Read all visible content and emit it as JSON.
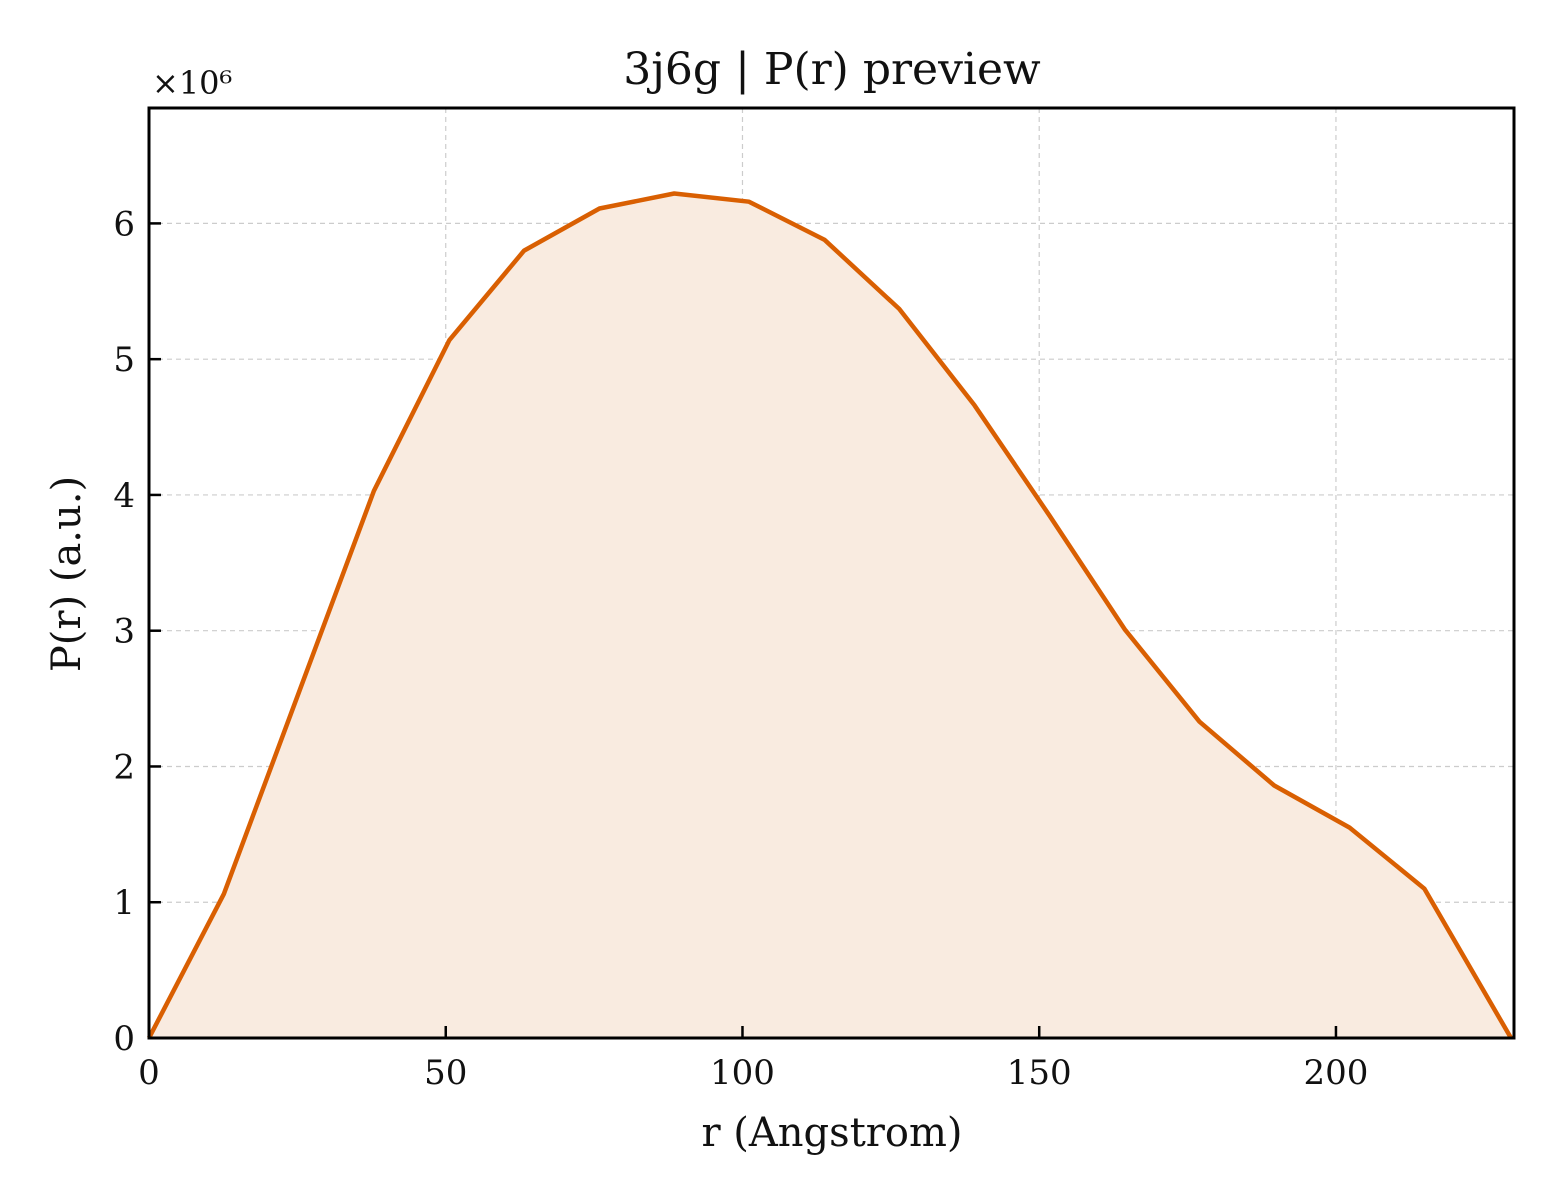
{
  "chart_data": {
    "type": "area",
    "title": "3j6g | P(r) preview",
    "xlabel": "r (Angstrom)",
    "ylabel": "P(r) (a.u.)",
    "y_offset_label": "×10⁶",
    "xlim": [
      0,
      230
    ],
    "ylim": [
      0,
      6.85
    ],
    "y_scale_factor": 1000000,
    "xticks": [
      0,
      50,
      100,
      150,
      200
    ],
    "yticks": [
      0,
      1,
      2,
      3,
      4,
      5,
      6
    ],
    "grid": true,
    "line_color": "#d95f02",
    "fill_color": "#f9ebe0",
    "series": [
      {
        "x": [
          0,
          12.6,
          25.3,
          37.9,
          50.6,
          63.2,
          75.9,
          88.5,
          101.1,
          113.8,
          126.4,
          139.1,
          151.7,
          164.4,
          177.0,
          189.6,
          202.3,
          214.9,
          229.5
        ],
        "values": [
          0,
          1.06,
          2.55,
          4.03,
          5.14,
          5.8,
          6.11,
          6.22,
          6.16,
          5.88,
          5.37,
          4.66,
          3.85,
          3.01,
          2.33,
          1.86,
          1.55,
          1.1,
          0
        ]
      }
    ]
  }
}
